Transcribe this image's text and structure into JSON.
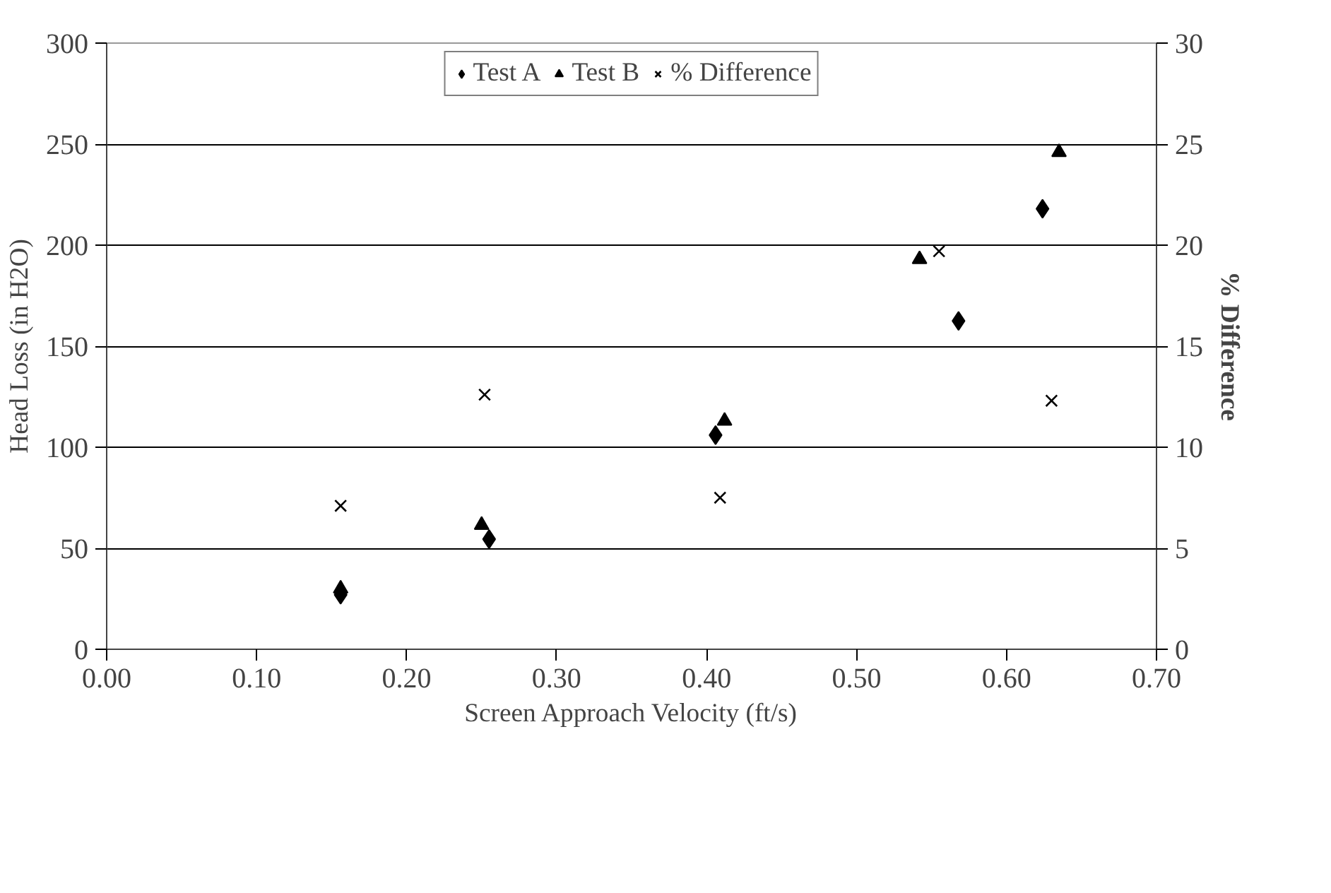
{
  "chart_data": {
    "type": "scatter",
    "xlabel": "Screen Approach Velocity (ft/s)",
    "ylabel": "Head Loss (in H2O)",
    "y2label": "% Difference",
    "xlim": [
      0,
      0.7
    ],
    "xticks": [
      {
        "value": 0,
        "label": "0.00"
      },
      {
        "value": 0.1,
        "label": "0.10"
      },
      {
        "value": 0.2,
        "label": "0.20"
      },
      {
        "value": 0.3,
        "label": "0.30"
      },
      {
        "value": 0.4,
        "label": "0.40"
      },
      {
        "value": 0.5,
        "label": "0.50"
      },
      {
        "value": 0.6,
        "label": "0.60"
      },
      {
        "value": 0.7,
        "label": "0.70"
      }
    ],
    "ylim": [
      0,
      300
    ],
    "yticks": [
      0,
      50,
      100,
      150,
      200,
      250,
      300
    ],
    "y2lim": [
      0,
      30
    ],
    "y2ticks": [
      0,
      5,
      10,
      15,
      20,
      25,
      30
    ],
    "grid": "y",
    "legend": "top",
    "series": [
      {
        "name": "Test A",
        "color": "#000000",
        "marker": "diamond",
        "x": [
          0.156,
          0.255,
          0.406,
          0.568,
          0.624
        ],
        "values": [
          27,
          54.5,
          106,
          162.5,
          218
        ]
      },
      {
        "name": "Test B",
        "color": "#000000",
        "marker": "triangle",
        "x": [
          0.156,
          0.25,
          0.412,
          0.542,
          0.635
        ],
        "values": [
          30,
          61.5,
          113,
          193,
          246
        ]
      },
      {
        "name": "% Difference",
        "color": "#000000",
        "marker": "cross",
        "axis": "y2",
        "x": [
          0.156,
          0.252,
          0.409,
          0.555,
          0.63
        ],
        "values": [
          7.1,
          12.6,
          7.5,
          19.7,
          12.3
        ]
      }
    ]
  }
}
